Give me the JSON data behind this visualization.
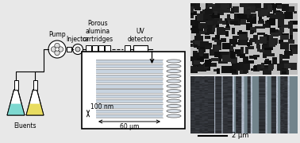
{
  "bg_color": "#e8e8e8",
  "white": "#ffffff",
  "black": "#000000",
  "cyan_liquid": "#7dd8d0",
  "yellow_liquid": "#e8dc60",
  "channel_color": "#c8d4e0",
  "channel_line": "#909090",
  "label_pump": "Pump",
  "label_injector": "Injector",
  "label_cartridges": "Porous\nalumina\ncartridges",
  "label_uv": "UV\ndetector",
  "label_eluents": "Eluents",
  "label_100nm": "100 nm",
  "label_60um": "60 μm",
  "label_2um": "2 μm",
  "fs": 5.5
}
